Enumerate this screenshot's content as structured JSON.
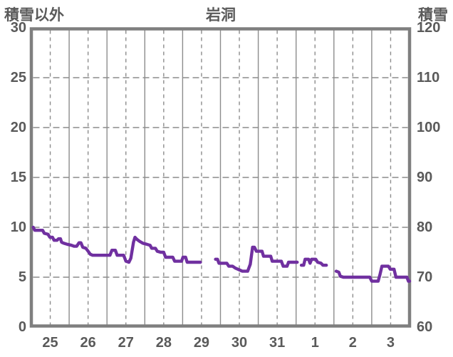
{
  "chart_data": {
    "type": "line",
    "title": "岩洞",
    "left_axis": {
      "title": "積雪以外",
      "ticks": [
        "30",
        "25",
        "20",
        "15",
        "10",
        "5",
        "0"
      ],
      "range": [
        0,
        30
      ]
    },
    "right_axis": {
      "title": "積雪",
      "ticks": [
        "120",
        "110",
        "100",
        "90",
        "80",
        "70",
        "60"
      ],
      "range": [
        60,
        120
      ]
    },
    "x_axis": {
      "labels": [
        "25",
        "26",
        "27",
        "28",
        "29",
        "30",
        "31",
        "1",
        "2",
        "3"
      ],
      "days": 10
    },
    "grid": {
      "h_dashed_values": [
        25,
        20,
        15,
        10,
        5
      ],
      "v_solid_day_boundaries": true,
      "v_dashed_day_midpoints": true
    },
    "legend": "none",
    "series": [
      {
        "axis": "left",
        "color": "#7030A0",
        "note": "values on left axis (0-30); x in days from left edge (0=start of 25th, 10=end of 3rd); null-separated segments are data gaps",
        "segments": [
          [
            [
              0.05,
              10.0
            ],
            [
              0.09,
              9.7
            ],
            [
              0.3,
              9.7
            ],
            [
              0.34,
              9.4
            ],
            [
              0.44,
              9.3
            ],
            [
              0.49,
              9.0
            ],
            [
              0.56,
              9.0
            ],
            [
              0.6,
              8.7
            ],
            [
              0.68,
              8.7
            ],
            [
              0.72,
              8.85
            ],
            [
              0.77,
              8.85
            ],
            [
              0.8,
              8.5
            ],
            [
              0.86,
              8.4
            ],
            [
              0.95,
              8.3
            ],
            [
              1.06,
              8.2
            ],
            [
              1.13,
              8.1
            ],
            [
              1.2,
              8.1
            ],
            [
              1.26,
              8.45
            ],
            [
              1.31,
              8.45
            ],
            [
              1.36,
              8.0
            ],
            [
              1.44,
              7.9
            ],
            [
              1.5,
              7.6
            ],
            [
              1.56,
              7.3
            ],
            [
              1.62,
              7.2
            ],
            [
              2.08,
              7.2
            ],
            [
              2.13,
              7.7
            ],
            [
              2.22,
              7.7
            ],
            [
              2.27,
              7.2
            ],
            [
              2.44,
              7.2
            ],
            [
              2.5,
              6.6
            ],
            [
              2.58,
              6.5
            ],
            [
              2.63,
              6.9
            ],
            [
              2.7,
              8.5
            ],
            [
              2.74,
              9.0
            ],
            [
              2.79,
              8.8
            ],
            [
              2.86,
              8.6
            ],
            [
              2.95,
              8.4
            ],
            [
              3.05,
              8.3
            ],
            [
              3.14,
              8.2
            ],
            [
              3.18,
              7.9
            ],
            [
              3.28,
              7.9
            ],
            [
              3.33,
              7.6
            ],
            [
              3.42,
              7.5
            ],
            [
              3.5,
              7.5
            ],
            [
              3.55,
              7.0
            ],
            [
              3.74,
              7.0
            ],
            [
              3.79,
              6.6
            ],
            [
              3.97,
              6.6
            ],
            [
              4.01,
              7.0
            ],
            [
              4.08,
              7.0
            ],
            [
              4.12,
              6.5
            ],
            [
              4.47,
              6.5
            ]
          ],
          [
            [
              4.87,
              6.8
            ],
            [
              4.92,
              6.8
            ],
            [
              4.96,
              6.4
            ],
            [
              5.17,
              6.4
            ],
            [
              5.22,
              6.1
            ],
            [
              5.32,
              6.1
            ],
            [
              5.4,
              5.9
            ],
            [
              5.52,
              5.7
            ],
            [
              5.58,
              5.6
            ],
            [
              5.72,
              5.6
            ],
            [
              5.79,
              6.3
            ],
            [
              5.85,
              8.0
            ],
            [
              5.9,
              8.0
            ],
            [
              5.95,
              7.6
            ],
            [
              6.1,
              7.6
            ],
            [
              6.14,
              7.1
            ],
            [
              6.33,
              7.1
            ],
            [
              6.37,
              6.6
            ],
            [
              6.61,
              6.6
            ],
            [
              6.66,
              6.1
            ],
            [
              6.76,
              6.1
            ],
            [
              6.8,
              6.5
            ],
            [
              7.03,
              6.5
            ]
          ],
          [
            [
              7.14,
              6.2
            ],
            [
              7.2,
              6.2
            ],
            [
              7.24,
              6.8
            ],
            [
              7.33,
              6.8
            ],
            [
              7.37,
              6.4
            ],
            [
              7.41,
              6.8
            ],
            [
              7.52,
              6.8
            ],
            [
              7.57,
              6.5
            ],
            [
              7.66,
              6.4
            ],
            [
              7.71,
              6.2
            ],
            [
              7.8,
              6.2
            ]
          ],
          [
            [
              8.06,
              5.6
            ],
            [
              8.13,
              5.5
            ],
            [
              8.17,
              5.1
            ],
            [
              8.25,
              5.0
            ],
            [
              8.95,
              5.0
            ],
            [
              9.0,
              4.6
            ],
            [
              9.17,
              4.6
            ],
            [
              9.22,
              5.3
            ],
            [
              9.27,
              6.1
            ],
            [
              9.44,
              6.1
            ],
            [
              9.49,
              5.8
            ],
            [
              9.59,
              5.8
            ],
            [
              9.64,
              5.0
            ],
            [
              9.93,
              5.0
            ],
            [
              9.97,
              4.6
            ],
            [
              10.0,
              4.6
            ]
          ]
        ]
      }
    ],
    "colors": {
      "line": "#7030A0",
      "frame": "#7f7f7f",
      "grid": "#8c8c8c",
      "text": "#5a5a5a"
    }
  }
}
